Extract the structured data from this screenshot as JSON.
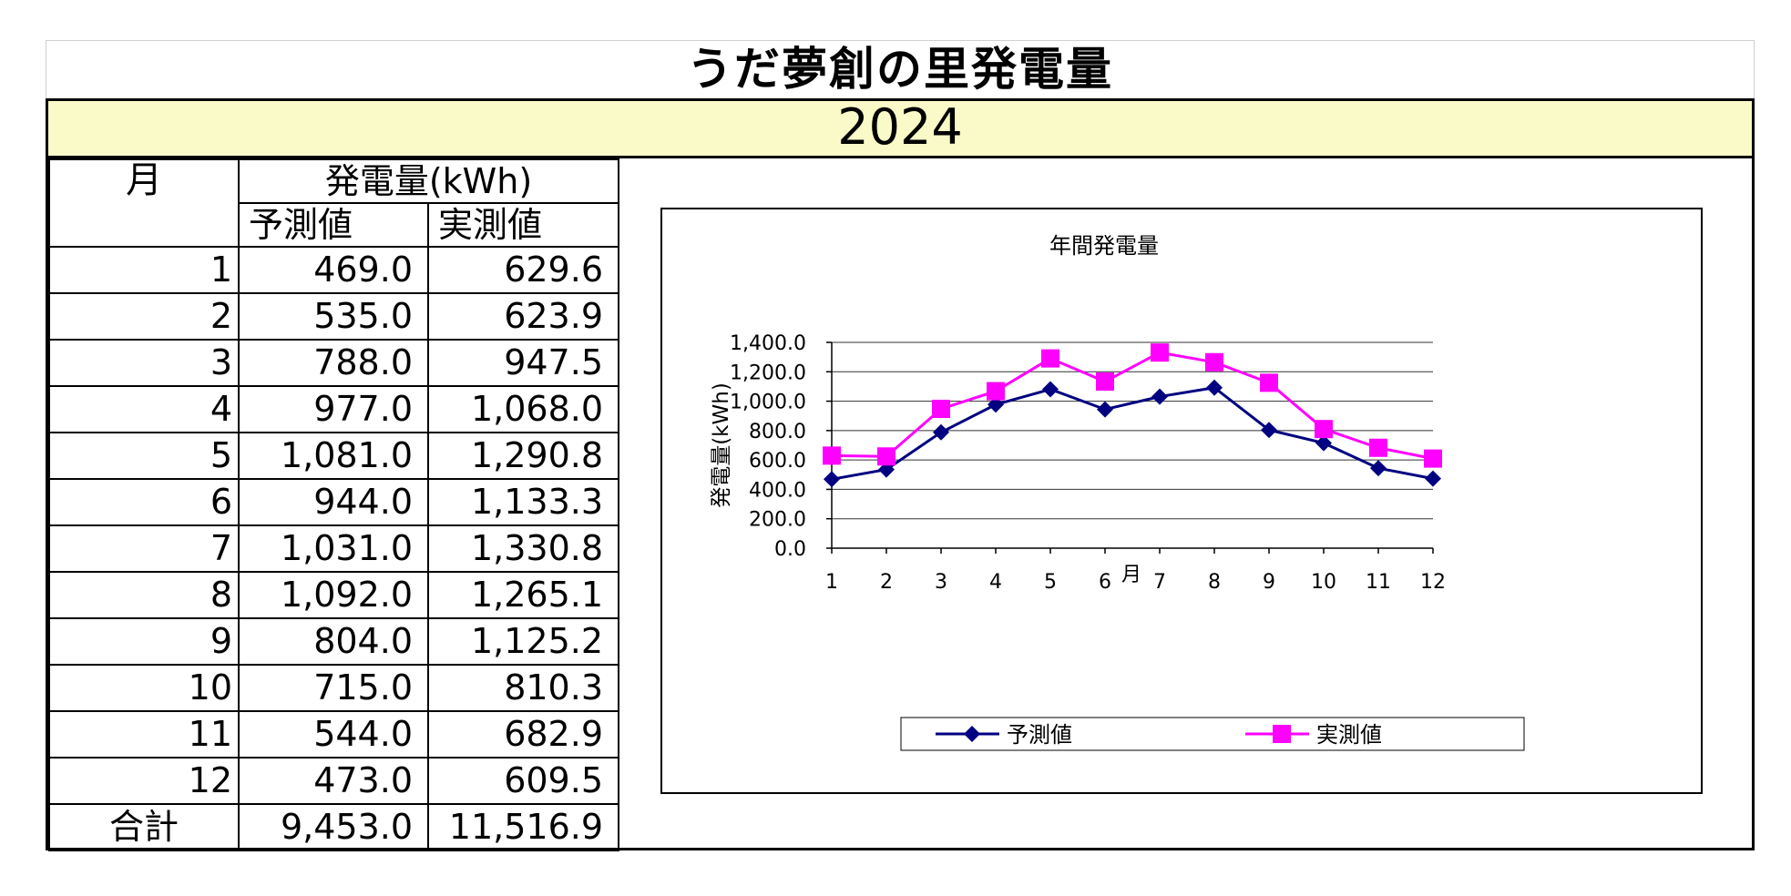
{
  "title": "うだ夢創の里発電量",
  "year": "2024",
  "table": {
    "month_header": "月",
    "power_header": "発電量(kWh)",
    "forecast_header": "予測値",
    "actual_header": "実測値",
    "rows": [
      {
        "month": "1",
        "forecast": "469.0",
        "actual": "629.6"
      },
      {
        "month": "2",
        "forecast": "535.0",
        "actual": "623.9"
      },
      {
        "month": "3",
        "forecast": "788.0",
        "actual": "947.5"
      },
      {
        "month": "4",
        "forecast": "977.0",
        "actual": "1,068.0"
      },
      {
        "month": "5",
        "forecast": "1,081.0",
        "actual": "1,290.8"
      },
      {
        "month": "6",
        "forecast": "944.0",
        "actual": "1,133.3"
      },
      {
        "month": "7",
        "forecast": "1,031.0",
        "actual": "1,330.8"
      },
      {
        "month": "8",
        "forecast": "1,092.0",
        "actual": "1,265.1"
      },
      {
        "month": "9",
        "forecast": "804.0",
        "actual": "1,125.2"
      },
      {
        "month": "10",
        "forecast": "715.0",
        "actual": "810.3"
      },
      {
        "month": "11",
        "forecast": "544.0",
        "actual": "682.9"
      },
      {
        "month": "12",
        "forecast": "473.0",
        "actual": "609.5"
      }
    ],
    "total_label": "合計",
    "total_forecast": "9,453.0",
    "total_actual": "11,516.9"
  },
  "chart_data": {
    "type": "line",
    "title": "年間発電量",
    "xlabel": "月",
    "ylabel": "発電量(kWh)",
    "categories": [
      "1",
      "2",
      "3",
      "4",
      "5",
      "6",
      "7",
      "8",
      "9",
      "10",
      "11",
      "12"
    ],
    "ylim": [
      0,
      1400
    ],
    "yticks": [
      0,
      200,
      400,
      600,
      800,
      1000,
      1200,
      1400
    ],
    "ytick_labels": [
      "0.0",
      "200.0",
      "400.0",
      "600.0",
      "800.0",
      "1,000.0",
      "1,200.0",
      "1,400.0"
    ],
    "grid": true,
    "legend_position": "bottom",
    "series": [
      {
        "name": "予測値",
        "color": "#000080",
        "marker": "diamond",
        "values": [
          469.0,
          535.0,
          788.0,
          977.0,
          1081.0,
          944.0,
          1031.0,
          1092.0,
          804.0,
          715.0,
          544.0,
          473.0
        ]
      },
      {
        "name": "実測値",
        "color": "#ff00ff",
        "marker": "square",
        "values": [
          629.6,
          623.9,
          947.5,
          1068.0,
          1290.8,
          1133.3,
          1330.8,
          1265.1,
          1125.2,
          810.3,
          682.9,
          609.5
        ]
      }
    ]
  }
}
